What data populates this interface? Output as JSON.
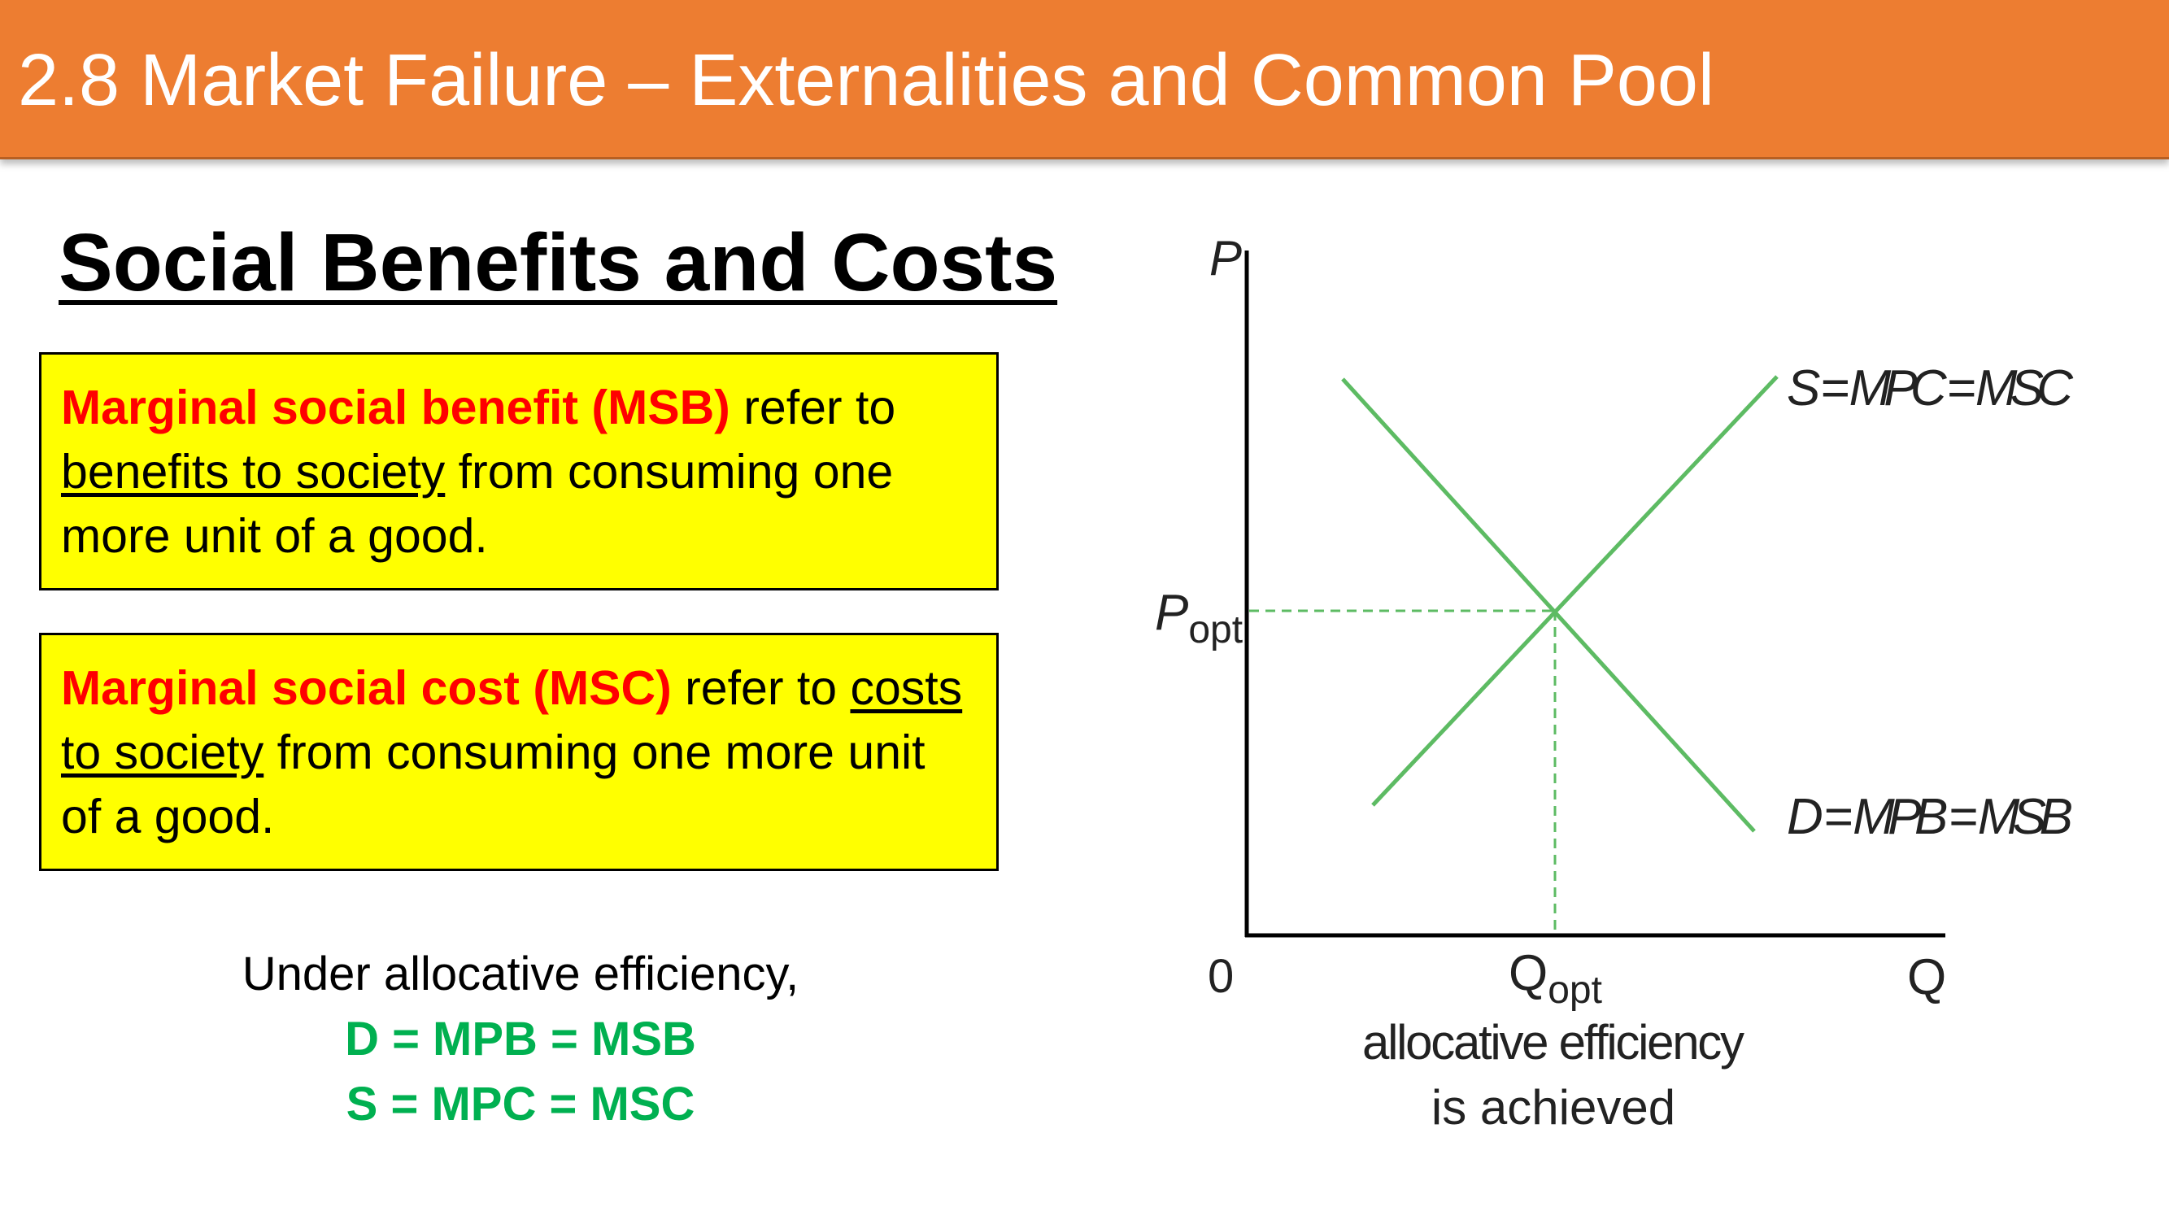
{
  "header": {
    "title": "2.8 Market Failure – Externalities and Common Pool"
  },
  "section": {
    "heading": "Social Benefits and Costs"
  },
  "definitions": {
    "msb": {
      "term": "Marginal social benefit (MSB)",
      "text_a": " refer to ",
      "underlined": "benefits to society",
      "text_b": " from consuming one more unit of a good."
    },
    "msc": {
      "term": "Marginal social cost (MSC)",
      "text_a": " refer to ",
      "underlined": "costs to society",
      "text_b": " from consuming one more unit of a good."
    }
  },
  "summary": {
    "intro": "Under allocative efficiency,",
    "demand_eq": "D = MPB = MSB",
    "supply_eq": "S = MPC = MSC"
  },
  "diagram": {
    "y_axis_label": "P",
    "x_axis_label": "Q",
    "origin_label": "0",
    "p_label_main": "P",
    "p_label_sub": "opt",
    "q_label_main": "Q",
    "q_label_sub": "opt",
    "supply_label": "S = MPC = MSC",
    "demand_label": "D = MPB = MSB",
    "caption_line1": "allocative efficiency",
    "caption_line2": "is achieved",
    "colors": {
      "curve": "#5DBB63",
      "dashed": "#5DBB63",
      "axis": "#000000"
    }
  }
}
